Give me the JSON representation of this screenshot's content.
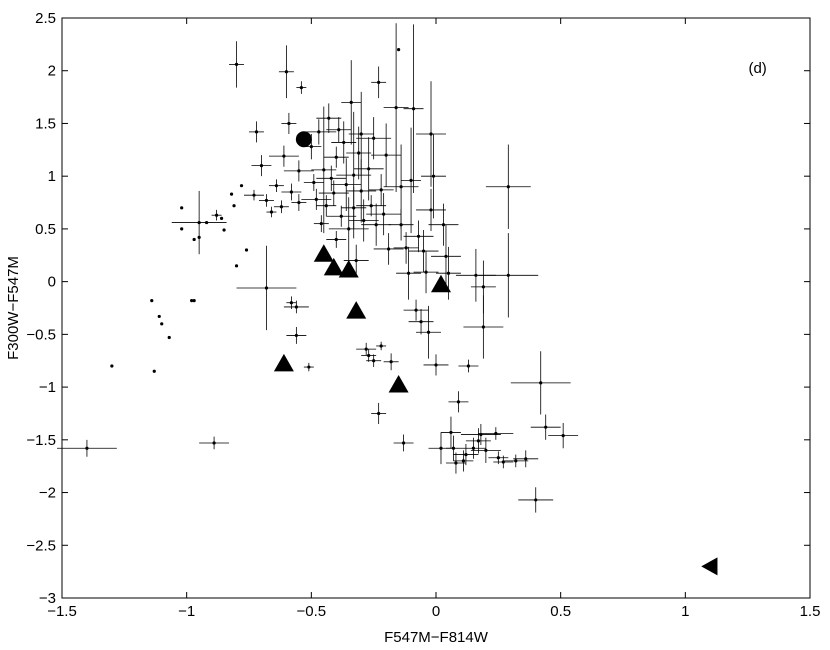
{
  "chart_data": {
    "type": "scatter",
    "title": "",
    "panel_label": "(d)",
    "xlabel": "F547M−F814W",
    "ylabel": "F300W−F547M",
    "xlim": [
      -1.5,
      1.5
    ],
    "ylim": [
      -3,
      2.5
    ],
    "xticks": [
      -1.5,
      -1,
      -0.5,
      0,
      0.5,
      1,
      1.5
    ],
    "xtick_labels": [
      "−1.5",
      "−1",
      "−0.5",
      "0",
      "0.5",
      "1",
      "1.5"
    ],
    "yticks": [
      -3,
      -2.5,
      -2,
      -1.5,
      -1,
      -0.5,
      0,
      0.5,
      1,
      1.5,
      2,
      2.5
    ],
    "ytick_labels": [
      "−3",
      "−2.5",
      "−2",
      "−1.5",
      "−1",
      "−0.5",
      "0",
      "0.5",
      "1",
      "1.5",
      "2",
      "2.5"
    ],
    "grid": false,
    "colors": {
      "marker": "#000000",
      "errorbar": "#000000",
      "axes": "#000000"
    },
    "points": [
      {
        "x": -1.4,
        "y": -1.58,
        "xerr": 0.12,
        "yerr": 0.08
      },
      {
        "x": -0.89,
        "y": -1.53,
        "xerr": 0.06,
        "yerr": 0.06
      },
      {
        "x": -1.3,
        "y": -0.8,
        "xerr": 0,
        "yerr": 0
      },
      {
        "x": -1.13,
        "y": -0.85,
        "xerr": 0,
        "yerr": 0
      },
      {
        "x": -1.14,
        "y": -0.18,
        "xerr": 0,
        "yerr": 0
      },
      {
        "x": -1.11,
        "y": -0.33,
        "xerr": 0,
        "yerr": 0
      },
      {
        "x": -1.1,
        "y": -0.4,
        "xerr": 0,
        "yerr": 0
      },
      {
        "x": -1.07,
        "y": -0.53,
        "xerr": 0,
        "yerr": 0
      },
      {
        "x": -0.98,
        "y": -0.18,
        "xerr": 0,
        "yerr": 0
      },
      {
        "x": -0.97,
        "y": -0.18,
        "xerr": 0,
        "yerr": 0
      },
      {
        "x": -0.95,
        "y": 0.56,
        "xerr": 0.11,
        "yerr": 0.3
      },
      {
        "x": -1.02,
        "y": 0.7,
        "xerr": 0,
        "yerr": 0
      },
      {
        "x": -1.02,
        "y": 0.5,
        "xerr": 0,
        "yerr": 0
      },
      {
        "x": -0.97,
        "y": 0.4,
        "xerr": 0,
        "yerr": 0
      },
      {
        "x": -0.95,
        "y": 0.42,
        "xerr": 0,
        "yerr": 0
      },
      {
        "x": -0.92,
        "y": 0.56,
        "xerr": 0,
        "yerr": 0
      },
      {
        "x": -0.88,
        "y": 0.63,
        "xerr": 0.02,
        "yerr": 0.05
      },
      {
        "x": -0.86,
        "y": 0.6,
        "xerr": 0,
        "yerr": 0
      },
      {
        "x": -0.85,
        "y": 0.49,
        "xerr": 0,
        "yerr": 0
      },
      {
        "x": -0.82,
        "y": 0.83,
        "xerr": 0,
        "yerr": 0
      },
      {
        "x": -0.81,
        "y": 0.72,
        "xerr": 0,
        "yerr": 0
      },
      {
        "x": -0.8,
        "y": 0.15,
        "xerr": 0,
        "yerr": 0
      },
      {
        "x": -0.78,
        "y": 0.91,
        "xerr": 0,
        "yerr": 0
      },
      {
        "x": -0.76,
        "y": 0.3,
        "xerr": 0,
        "yerr": 0
      },
      {
        "x": -0.73,
        "y": 0.82,
        "xerr": 0.04,
        "yerr": 0.05
      },
      {
        "x": -0.8,
        "y": 2.06,
        "xerr": 0.03,
        "yerr": 0.22
      },
      {
        "x": -0.68,
        "y": -0.06,
        "xerr": 0.12,
        "yerr": 0.4
      },
      {
        "x": -0.72,
        "y": 1.42,
        "xerr": 0.03,
        "yerr": 0.1
      },
      {
        "x": -0.7,
        "y": 1.1,
        "xerr": 0.04,
        "yerr": 0.1
      },
      {
        "x": -0.68,
        "y": 0.77,
        "xerr": 0.03,
        "yerr": 0.06
      },
      {
        "x": -0.66,
        "y": 0.66,
        "xerr": 0.02,
        "yerr": 0.05
      },
      {
        "x": -0.64,
        "y": 0.91,
        "xerr": 0.03,
        "yerr": 0.06
      },
      {
        "x": -0.62,
        "y": 0.71,
        "xerr": 0.03,
        "yerr": 0.06
      },
      {
        "x": -0.6,
        "y": 1.99,
        "xerr": 0.03,
        "yerr": 0.25
      },
      {
        "x": -0.61,
        "y": 1.19,
        "xerr": 0.06,
        "yerr": 0.1
      },
      {
        "x": -0.59,
        "y": 1.5,
        "xerr": 0.03,
        "yerr": 0.1
      },
      {
        "x": -0.58,
        "y": 0.85,
        "xerr": 0.04,
        "yerr": 0.08
      },
      {
        "x": -0.58,
        "y": -0.2,
        "xerr": 0.02,
        "yerr": 0.06
      },
      {
        "x": -0.56,
        "y": -0.51,
        "xerr": 0.04,
        "yerr": 0.08
      },
      {
        "x": -0.56,
        "y": -0.24,
        "xerr": 0.05,
        "yerr": 0.06
      },
      {
        "x": -0.55,
        "y": 1.05,
        "xerr": 0.06,
        "yerr": 0.1
      },
      {
        "x": -0.55,
        "y": 0.75,
        "xerr": 0.03,
        "yerr": 0.08
      },
      {
        "x": -0.54,
        "y": 1.84,
        "xerr": 0.02,
        "yerr": 0.06
      },
      {
        "x": -0.51,
        "y": -0.81,
        "xerr": 0.02,
        "yerr": 0.04
      },
      {
        "x": -0.5,
        "y": 1.28,
        "xerr": 0.04,
        "yerr": 0.12
      },
      {
        "x": -0.49,
        "y": 0.94,
        "xerr": 0.04,
        "yerr": 0.08
      },
      {
        "x": -0.48,
        "y": 0.78,
        "xerr": 0.06,
        "yerr": 0.1
      },
      {
        "x": -0.47,
        "y": 1.42,
        "xerr": 0.07,
        "yerr": 0.12
      },
      {
        "x": -0.46,
        "y": 0.55,
        "xerr": 0.03,
        "yerr": 0.08
      },
      {
        "x": -0.45,
        "y": 1.06,
        "xerr": 0.05,
        "yerr": 0.6
      },
      {
        "x": -0.44,
        "y": 0.72,
        "xerr": 0.04,
        "yerr": 0.1
      },
      {
        "x": -0.43,
        "y": 1.55,
        "xerr": 0.05,
        "yerr": 0.14
      },
      {
        "x": -0.42,
        "y": 0.98,
        "xerr": 0.06,
        "yerr": 0.12
      },
      {
        "x": -0.41,
        "y": 0.84,
        "xerr": 0.06,
        "yerr": 0.12
      },
      {
        "x": -0.4,
        "y": 1.18,
        "xerr": 0.05,
        "yerr": 0.1
      },
      {
        "x": -0.4,
        "y": 0.4,
        "xerr": 0.04,
        "yerr": 0.08
      },
      {
        "x": -0.39,
        "y": 1.44,
        "xerr": 0.05,
        "yerr": 0.12
      },
      {
        "x": -0.38,
        "y": 0.62,
        "xerr": 0.06,
        "yerr": 0.1
      },
      {
        "x": -0.37,
        "y": 1.32,
        "xerr": 0.05,
        "yerr": 0.2
      },
      {
        "x": -0.36,
        "y": 0.92,
        "xerr": 0.06,
        "yerr": 0.25
      },
      {
        "x": -0.35,
        "y": 0.5,
        "xerr": 0.08,
        "yerr": 0.3
      },
      {
        "x": -0.34,
        "y": 1.7,
        "xerr": 0.04,
        "yerr": 0.4
      },
      {
        "x": -0.33,
        "y": 1.01,
        "xerr": 0.07,
        "yerr": 0.6
      },
      {
        "x": -0.33,
        "y": 0.7,
        "xerr": 0.05,
        "yerr": 0.2
      },
      {
        "x": -0.32,
        "y": 0.2,
        "xerr": 0.05,
        "yerr": 0.15
      },
      {
        "x": -0.31,
        "y": 1.22,
        "xerr": 0.05,
        "yerr": 0.25
      },
      {
        "x": -0.3,
        "y": 0.86,
        "xerr": 0.06,
        "yerr": 0.3
      },
      {
        "x": -0.3,
        "y": 1.4,
        "xerr": 0.05,
        "yerr": 0.4
      },
      {
        "x": -0.29,
        "y": 0.58,
        "xerr": 0.06,
        "yerr": 0.2
      },
      {
        "x": -0.28,
        "y": -0.64,
        "xerr": 0.04,
        "yerr": 0.06
      },
      {
        "x": -0.27,
        "y": 1.07,
        "xerr": 0.06,
        "yerr": 0.3
      },
      {
        "x": -0.27,
        "y": -0.7,
        "xerr": 0.03,
        "yerr": 0.06
      },
      {
        "x": -0.26,
        "y": 0.72,
        "xerr": 0.06,
        "yerr": 0.1
      },
      {
        "x": -0.25,
        "y": 1.36,
        "xerr": 0.07,
        "yerr": 0.2
      },
      {
        "x": -0.25,
        "y": -0.75,
        "xerr": 0.03,
        "yerr": 0.06
      },
      {
        "x": -0.24,
        "y": 0.54,
        "xerr": 0.06,
        "yerr": 0.2
      },
      {
        "x": -0.23,
        "y": 1.89,
        "xerr": 0.03,
        "yerr": 0.15
      },
      {
        "x": -0.23,
        "y": -1.25,
        "xerr": 0.03,
        "yerr": 0.1
      },
      {
        "x": -0.22,
        "y": 0.87,
        "xerr": 0.05,
        "yerr": 0.15
      },
      {
        "x": -0.22,
        "y": -0.61,
        "xerr": 0.02,
        "yerr": 0.04
      },
      {
        "x": -0.21,
        "y": 0.64,
        "xerr": 0.07,
        "yerr": 0.2
      },
      {
        "x": -0.2,
        "y": 1.2,
        "xerr": 0.06,
        "yerr": 0.3
      },
      {
        "x": -0.19,
        "y": 0.31,
        "xerr": 0.06,
        "yerr": 0.15
      },
      {
        "x": -0.18,
        "y": -0.76,
        "xerr": 0.03,
        "yerr": 0.08
      },
      {
        "x": -0.16,
        "y": 1.65,
        "xerr": 0.05,
        "yerr": 0.8
      },
      {
        "x": -0.15,
        "y": 2.2,
        "xerr": 0,
        "yerr": 0
      },
      {
        "x": -0.14,
        "y": 0.9,
        "xerr": 0.07,
        "yerr": 0.4
      },
      {
        "x": -0.14,
        "y": 0.54,
        "xerr": 0.05,
        "yerr": 0.15
      },
      {
        "x": -0.13,
        "y": -1.53,
        "xerr": 0.04,
        "yerr": 0.08
      },
      {
        "x": -0.12,
        "y": 0.32,
        "xerr": 0.05,
        "yerr": 0.15
      },
      {
        "x": -0.11,
        "y": 0.08,
        "xerr": 0.05,
        "yerr": 0.25
      },
      {
        "x": -0.1,
        "y": 0.96,
        "xerr": 0.04,
        "yerr": 0.5
      },
      {
        "x": -0.09,
        "y": 1.64,
        "xerr": 0.04,
        "yerr": 0.8
      },
      {
        "x": -0.08,
        "y": -0.27,
        "xerr": 0.05,
        "yerr": 0.1
      },
      {
        "x": -0.07,
        "y": 0.43,
        "xerr": 0.06,
        "yerr": 0.15
      },
      {
        "x": -0.06,
        "y": -0.38,
        "xerr": 0.05,
        "yerr": 0.12
      },
      {
        "x": -0.05,
        "y": 0.29,
        "xerr": 0.06,
        "yerr": 0.2
      },
      {
        "x": -0.04,
        "y": 0.09,
        "xerr": 0.05,
        "yerr": 0.2
      },
      {
        "x": -0.03,
        "y": -0.48,
        "xerr": 0.05,
        "yerr": 0.25
      },
      {
        "x": -0.02,
        "y": 1.4,
        "xerr": 0.06,
        "yerr": 0.5
      },
      {
        "x": -0.02,
        "y": 0.68,
        "xerr": 0.06,
        "yerr": 0.2
      },
      {
        "x": -0.01,
        "y": 1.0,
        "xerr": 0.05,
        "yerr": 0.4
      },
      {
        "x": 0.0,
        "y": -0.79,
        "xerr": 0.05,
        "yerr": 0.1
      },
      {
        "x": 0.02,
        "y": -1.58,
        "xerr": 0.05,
        "yerr": 0.15
      },
      {
        "x": 0.03,
        "y": 0.54,
        "xerr": 0.06,
        "yerr": 0.2
      },
      {
        "x": 0.04,
        "y": 0.24,
        "xerr": 0.06,
        "yerr": 0.3
      },
      {
        "x": 0.05,
        "y": 0.08,
        "xerr": 0.05,
        "yerr": 0.25
      },
      {
        "x": 0.06,
        "y": -1.43,
        "xerr": 0.04,
        "yerr": 0.15
      },
      {
        "x": 0.07,
        "y": -1.58,
        "xerr": 0.03,
        "yerr": 0.12
      },
      {
        "x": 0.08,
        "y": -1.72,
        "xerr": 0.04,
        "yerr": 0.1
      },
      {
        "x": 0.09,
        "y": -1.14,
        "xerr": 0.04,
        "yerr": 0.1
      },
      {
        "x": 0.11,
        "y": -1.7,
        "xerr": 0.04,
        "yerr": 0.1
      },
      {
        "x": 0.12,
        "y": -1.64,
        "xerr": 0.05,
        "yerr": 0.1
      },
      {
        "x": 0.13,
        "y": -0.8,
        "xerr": 0.04,
        "yerr": 0.06
      },
      {
        "x": 0.15,
        "y": -1.58,
        "xerr": 0.05,
        "yerr": 0.1
      },
      {
        "x": 0.16,
        "y": 0.06,
        "xerr": 0.08,
        "yerr": 0.25
      },
      {
        "x": 0.17,
        "y": -1.51,
        "xerr": 0.05,
        "yerr": 0.12
      },
      {
        "x": 0.18,
        "y": -1.45,
        "xerr": 0.08,
        "yerr": 0.1
      },
      {
        "x": 0.19,
        "y": -0.43,
        "xerr": 0.08,
        "yerr": 0.3
      },
      {
        "x": 0.19,
        "y": -0.05,
        "xerr": 0.05,
        "yerr": 0.25
      },
      {
        "x": 0.2,
        "y": -1.6,
        "xerr": 0.06,
        "yerr": 0.12
      },
      {
        "x": 0.24,
        "y": -1.44,
        "xerr": 0.07,
        "yerr": 0.06
      },
      {
        "x": 0.25,
        "y": -1.67,
        "xerr": 0.04,
        "yerr": 0.06
      },
      {
        "x": 0.27,
        "y": -1.71,
        "xerr": 0.04,
        "yerr": 0.06
      },
      {
        "x": 0.29,
        "y": 0.9,
        "xerr": 0.09,
        "yerr": 0.4
      },
      {
        "x": 0.29,
        "y": 0.06,
        "xerr": 0.12,
        "yerr": 0.4
      },
      {
        "x": 0.32,
        "y": -1.7,
        "xerr": 0.05,
        "yerr": 0.06
      },
      {
        "x": 0.36,
        "y": -1.68,
        "xerr": 0.05,
        "yerr": 0.08
      },
      {
        "x": 0.4,
        "y": -2.07,
        "xerr": 0.07,
        "yerr": 0.12
      },
      {
        "x": 0.42,
        "y": -0.96,
        "xerr": 0.12,
        "yerr": 0.3
      },
      {
        "x": 0.44,
        "y": -1.38,
        "xerr": 0.06,
        "yerr": 0.12
      },
      {
        "x": 0.51,
        "y": -1.46,
        "xerr": 0.06,
        "yerr": 0.12
      }
    ],
    "circle_points": [
      {
        "x": -0.53,
        "y": 1.35
      }
    ],
    "triangle_points": [
      {
        "x": -0.61,
        "y": -0.78
      },
      {
        "x": -0.45,
        "y": 0.26
      },
      {
        "x": -0.41,
        "y": 0.13
      },
      {
        "x": -0.35,
        "y": 0.11
      },
      {
        "x": -0.32,
        "y": -0.28
      },
      {
        "x": -0.15,
        "y": -0.98
      },
      {
        "x": 0.02,
        "y": -0.03
      }
    ],
    "left_triangle_points": [
      {
        "x": 1.1,
        "y": -2.7
      }
    ]
  }
}
